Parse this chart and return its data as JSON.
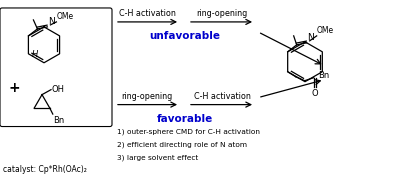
{
  "background_color": "#ffffff",
  "unfavorable_color": "#0000cc",
  "favorable_color": "#0000cc",
  "top_arrow_labels": [
    "C-H activation",
    "ring-opening"
  ],
  "bottom_arrow_labels": [
    "ring-opening",
    "C-H activation"
  ],
  "top_pathway_label": "unfavorable",
  "bottom_pathway_label": "favorable",
  "catalyst_text": "catalyst: Cp*Rh(OAc)₂",
  "favorable_points": [
    "1) outer-sphere CMD for C-H activation",
    "2) efficient directing role of N atom",
    "3) large solvent effect"
  ]
}
